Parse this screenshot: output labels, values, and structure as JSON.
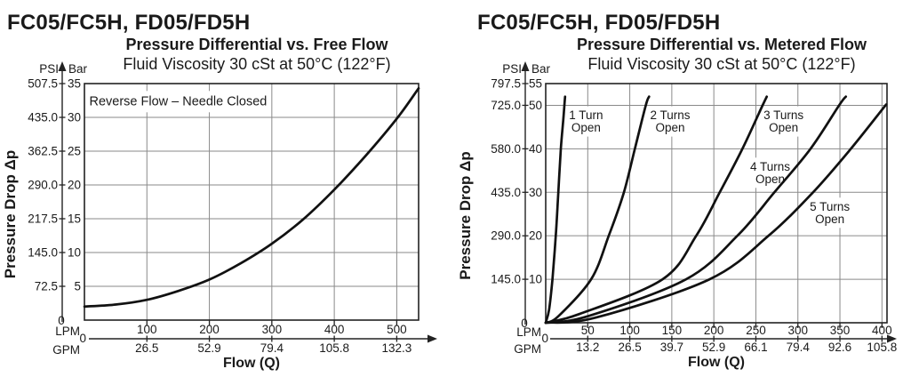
{
  "colors": {
    "background": "#ffffff",
    "text": "#1a1a1a",
    "grid": "#8a8a8a",
    "frame": "#222222",
    "curve": "#111111"
  },
  "chart_data": [
    {
      "type": "line",
      "panel_title": "FC05/FC5H, FD05/FD5H",
      "title": "Pressure Differential vs. Free Flow",
      "subtitle": "Fluid Viscosity 30 cSt at 50°C (122°F)",
      "ylabel": "Pressure Drop Δp",
      "xlabel": "Flow (Q)",
      "y_units": {
        "primary": "PSI",
        "secondary": "Bar"
      },
      "x_units": {
        "primary": "LPM",
        "secondary": "GPM"
      },
      "origin": "0",
      "y_axis": {
        "max_bar": 35,
        "ticks": [
          {
            "bar": "5",
            "psi": "72.5"
          },
          {
            "bar": "10",
            "psi": "145.0"
          },
          {
            "bar": "15",
            "psi": "217.5"
          },
          {
            "bar": "20",
            "psi": "290.0"
          },
          {
            "bar": "25",
            "psi": "362.5"
          },
          {
            "bar": "30",
            "psi": "435.0"
          },
          {
            "bar": "35",
            "psi": "507.5"
          }
        ]
      },
      "x_axis": {
        "max_lpm": 535,
        "ticks": [
          {
            "lpm": "100",
            "gpm": "26.5"
          },
          {
            "lpm": "200",
            "gpm": "52.9"
          },
          {
            "lpm": "300",
            "gpm": "79.4"
          },
          {
            "lpm": "400",
            "gpm": "105.8"
          },
          {
            "lpm": "500",
            "gpm": "132.3"
          }
        ]
      },
      "annotation": {
        "text": "Reverse Flow – Needle Closed",
        "lpm": 150,
        "bar": 31.8
      },
      "series": [
        {
          "name": "Reverse Flow – Needle Closed",
          "points_lpm_bar": [
            [
              0,
              2
            ],
            [
              50,
              2.3
            ],
            [
              100,
              3
            ],
            [
              150,
              4.3
            ],
            [
              200,
              6
            ],
            [
              250,
              8.4
            ],
            [
              300,
              11.3
            ],
            [
              350,
              14.9
            ],
            [
              400,
              19.3
            ],
            [
              450,
              24.3
            ],
            [
              500,
              29.8
            ],
            [
              535,
              34.3
            ]
          ]
        }
      ]
    },
    {
      "type": "line",
      "panel_title": "FC05/FC5H, FD05/FD5H",
      "title": "Pressure Differential vs. Metered Flow",
      "subtitle": "Fluid Viscosity 30 cSt at 50°C (122°F)",
      "ylabel": "Pressure Drop Δp",
      "xlabel": "Flow (Q)",
      "y_units": {
        "primary": "PSI",
        "secondary": "Bar"
      },
      "x_units": {
        "primary": "LPM",
        "secondary": "GPM"
      },
      "origin": "0",
      "y_axis": {
        "max_bar": 55,
        "ticks": [
          {
            "bar": "10",
            "psi": "145.0"
          },
          {
            "bar": "20",
            "psi": "290.0"
          },
          {
            "bar": "30",
            "psi": "435.0"
          },
          {
            "bar": "40",
            "psi": "580.0"
          },
          {
            "bar": "50",
            "psi": "725.0"
          },
          {
            "bar": "55",
            "psi": "797.5"
          }
        ]
      },
      "x_axis": {
        "max_lpm": 406,
        "ticks": [
          {
            "lpm": "50",
            "gpm": "13.2"
          },
          {
            "lpm": "100",
            "gpm": "26.5"
          },
          {
            "lpm": "150",
            "gpm": "39.7"
          },
          {
            "lpm": "200",
            "gpm": "52.9"
          },
          {
            "lpm": "250",
            "gpm": "66.1"
          },
          {
            "lpm": "300",
            "gpm": "79.4"
          },
          {
            "lpm": "350",
            "gpm": "92.6"
          },
          {
            "lpm": "400",
            "gpm": "105.8"
          }
        ]
      },
      "annotation": null,
      "series": [
        {
          "name": "1 Turn Open",
          "label": {
            "lines": [
              "1 Turn",
              "Open"
            ],
            "lpm": 48,
            "bar": 46.8
          },
          "points_lpm_bar": [
            [
              0,
              0
            ],
            [
              4,
              3
            ],
            [
              8,
              10
            ],
            [
              12,
              20
            ],
            [
              15,
              30
            ],
            [
              18,
              40
            ],
            [
              21,
              47
            ],
            [
              23,
              52
            ]
          ]
        },
        {
          "name": "2 Turns Open",
          "label": {
            "lines": [
              "2 Turns",
              "Open"
            ],
            "lpm": 148,
            "bar": 46.8
          },
          "points_lpm_bar": [
            [
              0,
              0
            ],
            [
              15,
              1.5
            ],
            [
              54,
              10
            ],
            [
              75,
              20
            ],
            [
              93,
              30
            ],
            [
              106,
              40
            ],
            [
              119,
              50
            ],
            [
              123,
              52
            ]
          ]
        },
        {
          "name": "3 Turns Open",
          "label": {
            "lines": [
              "3 Turns",
              "Open"
            ],
            "lpm": 283,
            "bar": 46.8
          },
          "points_lpm_bar": [
            [
              0,
              0
            ],
            [
              40,
              2
            ],
            [
              139,
              10
            ],
            [
              179,
              20
            ],
            [
              207,
              30
            ],
            [
              234,
              40
            ],
            [
              258,
              50
            ],
            [
              263,
              52
            ]
          ]
        },
        {
          "name": "4 Turns Open",
          "label": {
            "lines": [
              "4 Turns",
              "Open"
            ],
            "lpm": 267,
            "bar": 35
          },
          "points_lpm_bar": [
            [
              0,
              0
            ],
            [
              50,
              1.5
            ],
            [
              167,
              10
            ],
            [
              228,
              20
            ],
            [
              272,
              30
            ],
            [
              315,
              40
            ],
            [
              349,
              50
            ],
            [
              357,
              52
            ]
          ]
        },
        {
          "name": "5 Turns Open",
          "label": {
            "lines": [
              "5 Turns",
              "Open"
            ],
            "lpm": 338,
            "bar": 25.8
          },
          "points_lpm_bar": [
            [
              0,
              0
            ],
            [
              60,
              1.2
            ],
            [
              195,
              10
            ],
            [
              265,
              20
            ],
            [
              318,
              30
            ],
            [
              363,
              40
            ],
            [
              405,
              50.2
            ]
          ]
        }
      ]
    }
  ]
}
